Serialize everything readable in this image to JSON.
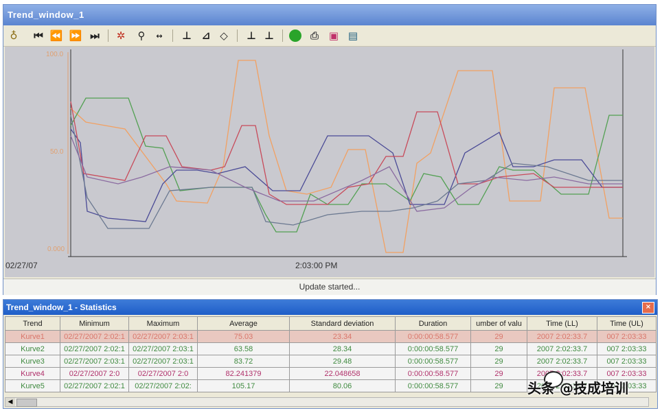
{
  "window": {
    "title": "Trend_window_1"
  },
  "toolbar": {
    "icons": [
      "key-icon",
      "first-icon",
      "rewind-icon",
      "forward-icon",
      "last-icon",
      "stop-icon",
      "zoom-icon",
      "ruler-icon",
      "axis-icon",
      "curve-icon",
      "diamond-icon",
      "stats-icon",
      "stats2-icon",
      "green-circle-icon",
      "print-icon",
      "save-icon",
      "export-icon"
    ]
  },
  "axis": {
    "y_top": "100.0",
    "y_mid": "50.0",
    "y_bottom": "0.000",
    "x_left": "02/27/07",
    "x_mid": "2:03:00 PM"
  },
  "status": {
    "text": "Update started..."
  },
  "stats": {
    "title": "Trend_window_1 - Statistics",
    "columns": [
      "Trend",
      "Minimum",
      "Maximum",
      "Average",
      "Standard deviation",
      "Duration",
      "umber of valu",
      "Time (LL)",
      "Time (UL)"
    ],
    "rows": [
      {
        "color": "#d9766a",
        "cells": [
          "Kurve1",
          "02/27/2007 2:02:1",
          "02/27/2007 2:03:1",
          "75.03",
          "23.34",
          "0:00:00:58.577",
          "29",
          "2007 2:02:33.7",
          "007 2:03:33"
        ]
      },
      {
        "color": "#3f8a3f",
        "cells": [
          "Kurve2",
          "02/27/2007 2:02:1",
          "02/27/2007 2:03:1",
          "63.58",
          "28.34",
          "0:00:00:58.577",
          "29",
          "2007 2:02:33.7",
          "007 2:03:33"
        ]
      },
      {
        "color": "#3f8a3f",
        "cells": [
          "Kurve3",
          "02/27/2007 2:03:1",
          "02/27/2007 2:03:1",
          "83.72",
          "29.48",
          "0:00:00:58.577",
          "29",
          "2007 2:02:33.7",
          "007 2:03:33"
        ]
      },
      {
        "color": "#b0306a",
        "cells": [
          "Kurve4",
          "02/27/2007 2:0",
          "02/27/2007 2:0",
          "82.241379",
          "22.048658",
          "0:00:00:58.577",
          "29",
          "2007 2:02:33.7",
          "007 2:03:33"
        ]
      },
      {
        "color": "#3f8a3f",
        "cells": [
          "Kurve5",
          "02/27/2007 2:02:1",
          "02/27/2007 2:02:",
          "105.17",
          "80.06",
          "0:00:00:58.577",
          "29",
          "2007 2:02:33.7",
          "007 2:03:33"
        ]
      }
    ]
  },
  "watermark": {
    "text": "头条 @技成培训"
  },
  "colors": {
    "curve1": "#f2a061",
    "curve2": "#52a052",
    "curve3": "#4a4a96",
    "curve4": "#c84a5a",
    "curve5": "#6a7890",
    "curve6": "#8a6aa0"
  }
}
